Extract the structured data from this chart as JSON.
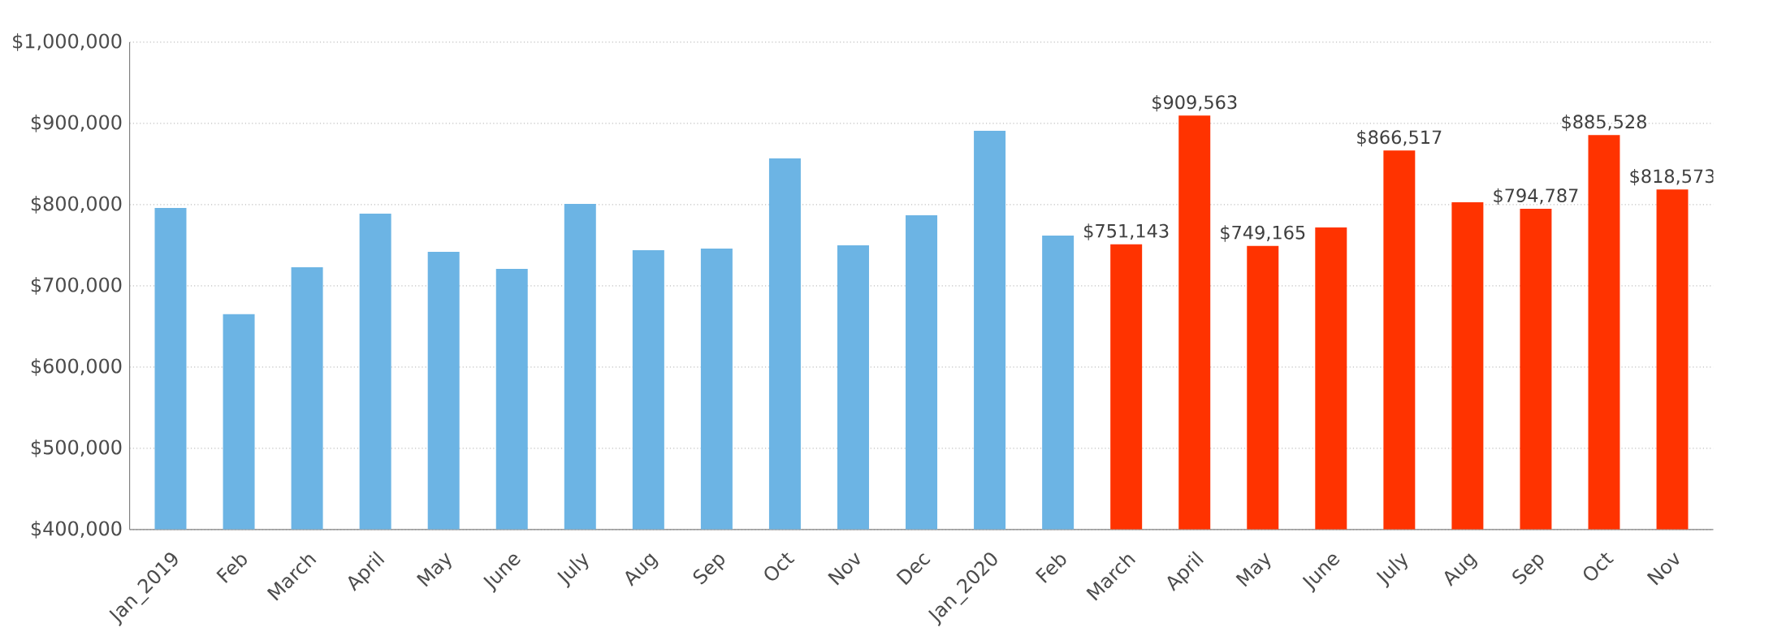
{
  "chart_data": {
    "type": "bar",
    "categories": [
      "Jan_2019",
      "Feb",
      "March",
      "April",
      "May",
      "June",
      "July",
      "Aug",
      "Sep",
      "Oct",
      "Nov",
      "Dec",
      "Jan_2020",
      "Feb",
      "March",
      "April",
      "May",
      "June",
      "July",
      "Aug",
      "Sep",
      "Oct",
      "Nov"
    ],
    "values": [
      796000,
      665000,
      723000,
      789000,
      742000,
      721000,
      801000,
      744000,
      746000,
      857000,
      750000,
      787000,
      891000,
      762000,
      751143,
      909563,
      749165,
      772000,
      866517,
      803000,
      794787,
      885528,
      818573
    ],
    "colors": [
      "#6cb4e4",
      "#6cb4e4",
      "#6cb4e4",
      "#6cb4e4",
      "#6cb4e4",
      "#6cb4e4",
      "#6cb4e4",
      "#6cb4e4",
      "#6cb4e4",
      "#6cb4e4",
      "#6cb4e4",
      "#6cb4e4",
      "#6cb4e4",
      "#6cb4e4",
      "#ff3300",
      "#ff3300",
      "#ff3300",
      "#ff3300",
      "#ff3300",
      "#ff3300",
      "#ff3300",
      "#ff3300",
      "#ff3300"
    ],
    "value_labels": [
      null,
      null,
      null,
      null,
      null,
      null,
      null,
      null,
      null,
      null,
      null,
      null,
      null,
      null,
      "$751,143",
      "$909,563",
      "$749,165",
      null,
      "$866,517",
      null,
      "$794,787",
      "$885,528",
      "$818,573"
    ],
    "ylim": [
      400000,
      1000000
    ],
    "yticks": [
      {
        "value": 400000,
        "label": "$400,000"
      },
      {
        "value": 500000,
        "label": "$500,000"
      },
      {
        "value": 600000,
        "label": "$600,000"
      },
      {
        "value": 700000,
        "label": "$700,000"
      },
      {
        "value": 800000,
        "label": "$800,000"
      },
      {
        "value": 900000,
        "label": "$900,000"
      },
      {
        "value": 1000000,
        "label": "$1,000,000"
      }
    ],
    "grid": "y"
  }
}
